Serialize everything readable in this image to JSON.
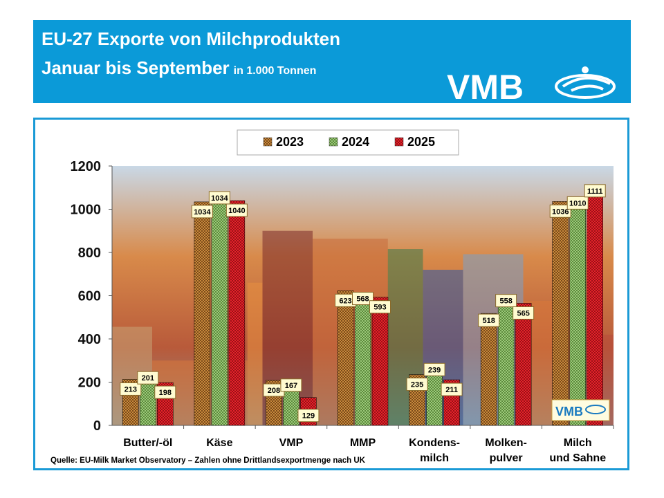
{
  "header": {
    "title_line1": "EU-27 Exporte von Milchprodukten",
    "title_line2": "Januar bis September",
    "unit": "in 1.000 Tonnen",
    "logo_text": "VMB"
  },
  "colors": {
    "header_bg": "#0b9ad8",
    "frame": "#1a9ad6",
    "series": [
      "#c98a3c",
      "#8fc170",
      "#e1232b"
    ]
  },
  "source": "Quelle: EU-Milk Market Observatory – Zahlen ohne Drittlandsexportmenge nach UK",
  "inset_logo_text": "VMB",
  "chart_data": {
    "type": "bar",
    "title": "",
    "xlabel": "",
    "ylabel": "",
    "ylim": [
      0,
      1200
    ],
    "yticks": [
      0,
      200,
      400,
      600,
      800,
      1000,
      1200
    ],
    "categories": [
      [
        "Butter/-öl"
      ],
      [
        "Käse"
      ],
      [
        "VMP"
      ],
      [
        "MMP"
      ],
      [
        "Kondens-",
        "milch"
      ],
      [
        "Molken-",
        "pulver"
      ],
      [
        "Milch",
        "und Sahne"
      ]
    ],
    "series": [
      {
        "name": "2023",
        "values": [
          213,
          1034,
          208,
          623,
          235,
          518,
          1036
        ]
      },
      {
        "name": "2024",
        "values": [
          201,
          1034,
          167,
          568,
          239,
          558,
          1010
        ]
      },
      {
        "name": "2025",
        "values": [
          198,
          1040,
          129,
          593,
          211,
          565,
          1111
        ]
      }
    ],
    "legend_position": "top-center",
    "grid": false
  }
}
